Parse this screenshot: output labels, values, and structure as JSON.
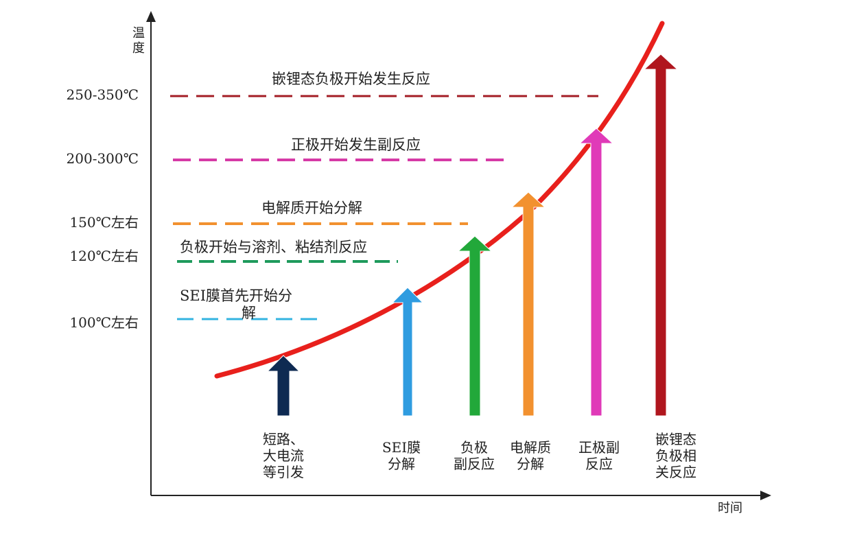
{
  "axes": {
    "y_label_line1": "温",
    "y_label_line2": "度",
    "x_label": "时间"
  },
  "levels": [
    {
      "temp": "250-350℃",
      "title": "嵌锂态负极开始发生反应",
      "color": "#a31d24"
    },
    {
      "temp": "200-300℃",
      "title": "正极开始发生副反应",
      "color": "#d63aa6"
    },
    {
      "temp": "150℃左右",
      "title": "电解质开始分解",
      "color": "#f2912f"
    },
    {
      "temp": "120℃左右",
      "title": "负极开始与溶剂、粘结剂反应",
      "color": "#1e9a5c"
    },
    {
      "temp": "100℃左右",
      "title_line1": "SEI膜首先开始分",
      "title_line2": "解",
      "color": "#33b3e0"
    }
  ],
  "stages": [
    {
      "lines": [
        "短路、",
        "大电流",
        "等引发"
      ],
      "color": "#0e2a52"
    },
    {
      "lines": [
        "SEI膜",
        "分解"
      ],
      "color": "#2f9ce0"
    },
    {
      "lines": [
        "负极",
        "副反应"
      ],
      "color": "#22a83a"
    },
    {
      "lines": [
        "电解质",
        "分解"
      ],
      "color": "#f2912f"
    },
    {
      "lines": [
        "正极副",
        "反应"
      ],
      "color": "#e03ab8"
    },
    {
      "lines": [
        "嵌锂态",
        "负极相",
        "关反应"
      ],
      "color": "#b0161e"
    }
  ],
  "curve_color": "#e8201c"
}
